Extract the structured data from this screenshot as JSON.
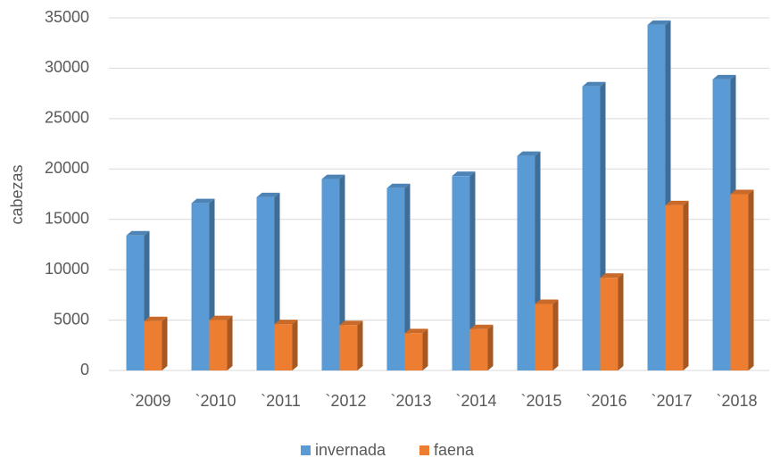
{
  "chart_data": {
    "type": "bar3d",
    "y_label": "cabezas",
    "categories": [
      "`2009",
      "`2010",
      "`2011",
      "`2012",
      "`2013",
      "`2014",
      "`2015",
      "`2016",
      "`2017",
      "`2018"
    ],
    "series": [
      {
        "name": "invernada",
        "color": "#5b9bd5",
        "values": [
          13400,
          16600,
          17200,
          19000,
          18100,
          19300,
          21300,
          28200,
          34300,
          28900
        ]
      },
      {
        "name": "faena",
        "color": "#ed7d31",
        "values": [
          4900,
          5000,
          4600,
          4500,
          3700,
          4100,
          6600,
          9200,
          16400,
          17500
        ]
      }
    ],
    "ylim": [
      0,
      35000
    ],
    "yticks": [
      0,
      5000,
      10000,
      15000,
      20000,
      25000,
      30000,
      35000
    ],
    "grid": true
  }
}
